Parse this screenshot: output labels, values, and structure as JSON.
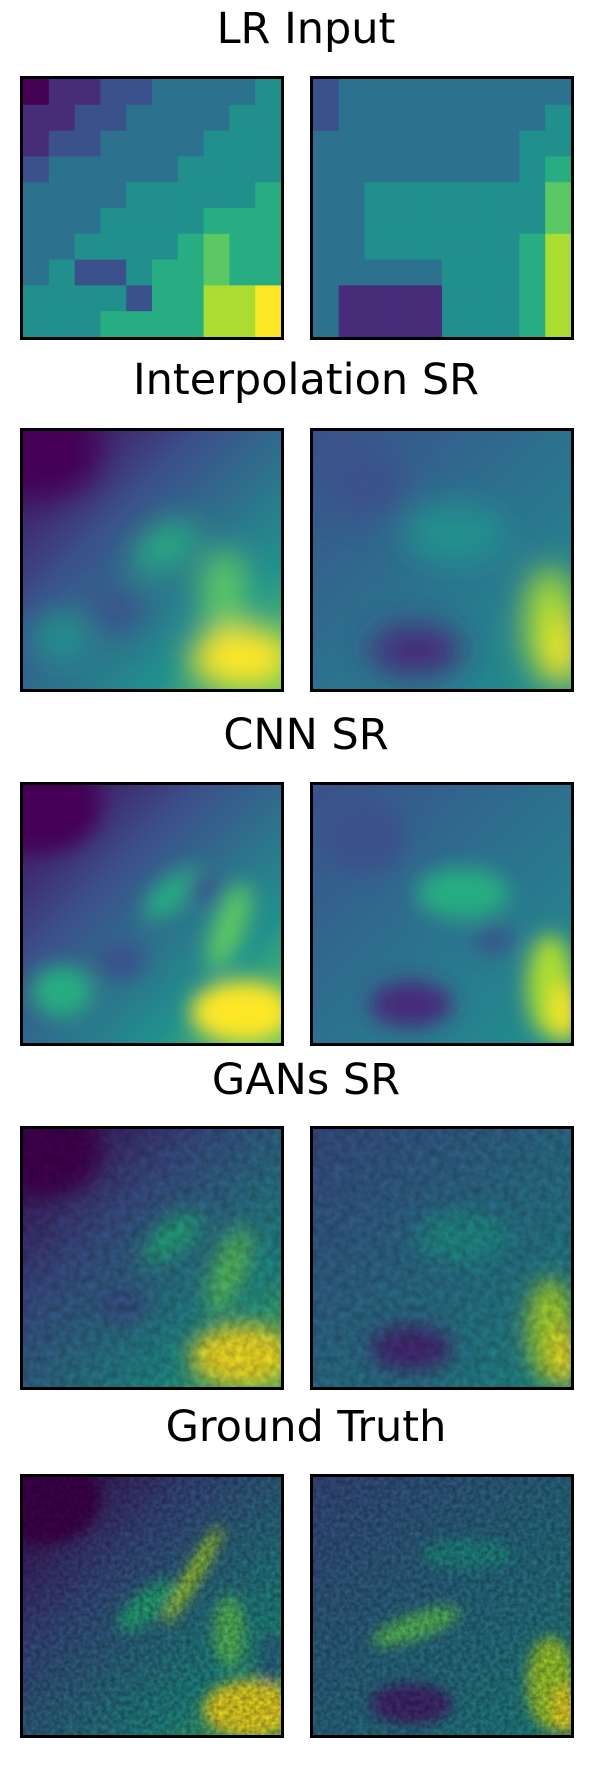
{
  "figure": {
    "rows": [
      {
        "key": "lr",
        "title": "LR Input",
        "style": "pixelated"
      },
      {
        "key": "interp",
        "title": "Interpolation SR",
        "style": "smooth"
      },
      {
        "key": "cnn",
        "title": "CNN SR",
        "style": "smooth-sharp"
      },
      {
        "key": "gan",
        "title": "GANs SR",
        "style": "textured"
      },
      {
        "key": "gt",
        "title": "Ground Truth",
        "style": "textured-sharp"
      }
    ],
    "colormap": "viridis",
    "colormap_stops": [
      "#440154",
      "#472c7a",
      "#3b518b",
      "#2c718e",
      "#21908d",
      "#27ad81",
      "#5cc863",
      "#aadc32",
      "#fde725"
    ]
  }
}
